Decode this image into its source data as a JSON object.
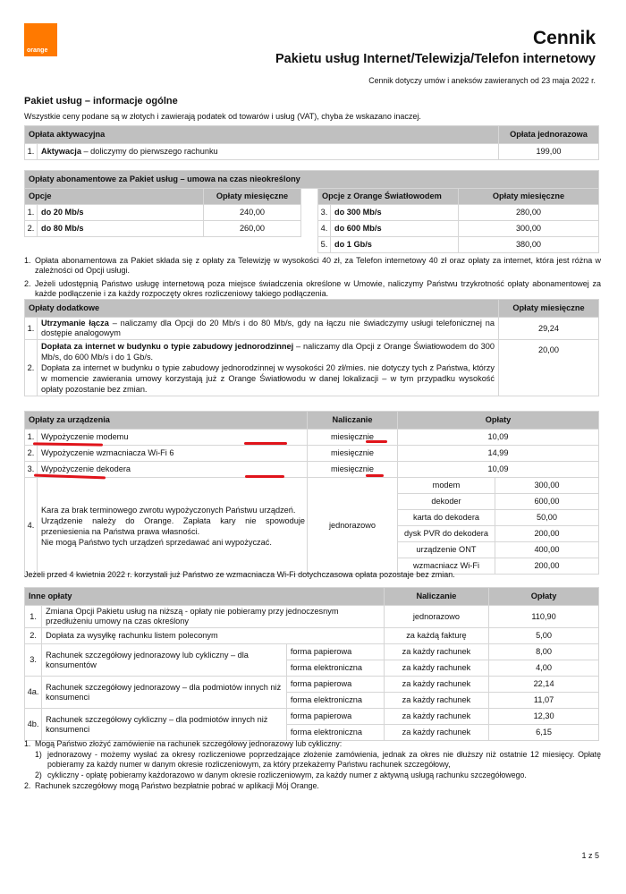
{
  "header": {
    "logo": "orange",
    "title": "Cennik",
    "subtitle": "Pakietu usług Internet/Telewizja/Telefon internetowy",
    "dateline": "Cennik dotyczy umów i aneksów zawieranych od 23 maja 2022 r."
  },
  "section": {
    "title": "Pakiet usług – informacje ogólne",
    "vat_note": "Wszystkie ceny podane są w złotych i zawierają podatek od towarów i usług (VAT), chyba że wskazano inaczej."
  },
  "activation": {
    "h1": "Opłata aktywacyjna",
    "h2": "Opłata jednorazowa",
    "rows": [
      {
        "n": "1.",
        "bold": "Aktywacja",
        "text": " – doliczymy do pierwszego rachunku",
        "price": "199,00"
      }
    ]
  },
  "subscription": {
    "title": "Opłaty abonamentowe za Pakiet usług – umowa na czas nieokreślony",
    "left": {
      "h1": "Opcje",
      "h2": "Opłaty miesięczne",
      "rows": [
        {
          "n": "1.",
          "label": "do 20 Mb/s",
          "price": "240,00"
        },
        {
          "n": "2.",
          "label": "do 80 Mb/s",
          "price": "260,00"
        }
      ]
    },
    "right": {
      "h1": "Opcje z Orange Światłowodem",
      "h2": "Opłaty miesięczne",
      "rows": [
        {
          "n": "3.",
          "label": "do 300 Mb/s",
          "price": "280,00"
        },
        {
          "n": "4.",
          "label": "do 600 Mb/s",
          "price": "300,00"
        },
        {
          "n": "5.",
          "label": "do 1 Gb/s",
          "price": "380,00"
        }
      ]
    },
    "notes": [
      {
        "n": "1.",
        "text": "Opłata abonamentowa za Pakiet składa się z opłaty za Telewizję w wysokości 40 zł, za Telefon internetowy 40 zł oraz opłaty za internet, która jest różna w zależności od Opcji usługi."
      },
      {
        "n": "2.",
        "text": "Jeżeli udostępnią Państwo usługę internetową poza miejsce świadczenia określone w Umowie, naliczymy Państwu trzykrotność opłaty abonamentowej za każde podłączenie i za każdy rozpoczęty okres rozliczeniowy takiego podłączenia."
      }
    ]
  },
  "additional": {
    "h1": "Opłaty dodatkowe",
    "h2": "Opłaty miesięczne",
    "rows": [
      {
        "n": "1.",
        "bold": "Utrzymanie łącza",
        "text": " – naliczamy dla Opcji do 20 Mb/s i do 80 Mb/s, gdy na łączu nie świadczymy usługi telefonicznej na dostępie analogowym",
        "extra": "",
        "price": "29,24"
      },
      {
        "n": "2.",
        "bold": "Dopłata za internet w budynku o typie zabudowy jednorodzinnej",
        "text": " – naliczamy dla Opcji z Orange Światłowodem do 300 Mb/s, do 600 Mb/s i do 1 Gb/s.",
        "extra": "Dopłata za internet w budynku o typie zabudowy jednorodzinnej w wysokości 20 zł/mies. nie dotyczy tych z Państwa, którzy w momencie zawierania umowy korzystają już z Orange Światłowodu w danej lokalizacji – w tym przypadku wysokość opłaty pozostanie bez zmian.",
        "price": "20,00"
      }
    ]
  },
  "devices": {
    "h1": "Opłaty za urządzenia",
    "h2": "Naliczanie",
    "h3": "Opłaty",
    "rows": [
      {
        "n": "1.",
        "label": "Wypożyczenie modemu",
        "billing": "miesięcznie",
        "price": "10,09"
      },
      {
        "n": "2.",
        "label": "Wypożyczenie wzmacniacza Wi-Fi 6",
        "billing": "miesięcznie",
        "price": "14,99"
      },
      {
        "n": "3.",
        "label": "Wypożyczenie dekodera",
        "billing": "miesięcznie",
        "price": "10,09"
      }
    ],
    "penalty": {
      "n": "4.",
      "l1": "Kara za brak terminowego zwrotu wypożyczonych Państwu urządzeń.",
      "l2": "Urządzenie należy do Orange. Zapłata kary nie spowoduje przeniesienia na Państwa prawa własności.",
      "l3": "Nie mogą Państwo tych urządzeń sprzedawać ani wypożyczać.",
      "billing": "jednorazowo",
      "items": [
        {
          "name": "modem",
          "price": "300,00"
        },
        {
          "name": "dekoder",
          "price": "600,00"
        },
        {
          "name": "karta do dekodera",
          "price": "50,00"
        },
        {
          "name": "dysk PVR do dekodera",
          "price": "200,00"
        },
        {
          "name": "urządzenie ONT",
          "price": "400,00"
        },
        {
          "name": "wzmacniacz Wi-Fi",
          "price": "200,00"
        }
      ]
    },
    "note": "Jeżeli przed 4 kwietnia 2022 r. korzystali już Państwo ze wzmacniacza Wi-Fi dotychczasowa opłata pozostaje bez zmian.",
    "annotation_color": "#e0141b"
  },
  "other": {
    "h1": "Inne opłaty",
    "h2": "Naliczanie",
    "h3": "Opłaty",
    "r1": {
      "n": "1.",
      "label": "Zmiana Opcji Pakietu usług na niższą - opłaty nie pobieramy przy jednoczesnym przedłużeniu umowy na czas określony",
      "billing": "jednorazowo",
      "price": "110,90"
    },
    "r2": {
      "n": "2.",
      "label": "Dopłata za wysyłkę rachunku listem poleconym",
      "billing": "za każdą fakturę",
      "price": "5,00"
    },
    "groups": [
      {
        "n": "3.",
        "label": "Rachunek szczegółowy jednorazowy lub cykliczny – dla konsumentów",
        "sub": [
          {
            "form": "forma papierowa",
            "billing": "za każdy rachunek",
            "price": "8,00"
          },
          {
            "form": "forma elektroniczna",
            "billing": "za każdy rachunek",
            "price": "4,00"
          }
        ]
      },
      {
        "n": "4a.",
        "label": "Rachunek szczegółowy jednorazowy –  dla podmiotów innych niż konsumenci",
        "sub": [
          {
            "form": "forma papierowa",
            "billing": "za każdy rachunek",
            "price": "22,14"
          },
          {
            "form": "forma elektroniczna",
            "billing": "za każdy rachunek",
            "price": "11,07"
          }
        ]
      },
      {
        "n": "4b.",
        "label": "Rachunek szczegółowy cykliczny  –  dla podmiotów innych niż konsumenci",
        "sub": [
          {
            "form": "forma papierowa",
            "billing": "za każdy rachunek",
            "price": "12,30"
          },
          {
            "form": "forma elektroniczna",
            "billing": "za każdy rachunek",
            "price": "6,15"
          }
        ]
      }
    ],
    "notes": {
      "n1": "1.",
      "t1": "Mogą Państwo złożyć zamówienie na rachunek szczegółowy jednorazowy lub cykliczny:",
      "s1n": "1)",
      "s1": "jednorazowy - możemy wysłać za okresy rozliczeniowe poprzedzające złożenie zamówienia, jednak za okres nie dłuższy niż ostatnie 12 miesięcy. Opłatę pobieramy za każdy numer w danym okresie rozliczeniowym, za który przekażemy Państwu rachunek szczegółowy,",
      "s2n": "2)",
      "s2": "cykliczny - opłatę pobieramy każdorazowo w danym okresie rozliczeniowym, za każdy numer z aktywną usługą rachunku szczegółowego.",
      "n2": "2.",
      "t2": "Rachunek szczegółowy mogą Państwo bezpłatnie pobrać w aplikacji Mój Orange."
    }
  },
  "footer": {
    "page": "1 z 5"
  }
}
